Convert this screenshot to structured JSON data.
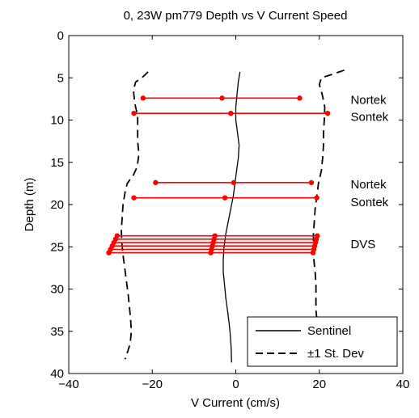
{
  "chart_data": {
    "type": "line",
    "title": "0, 23W pm779 Depth vs V Current Speed",
    "xlabel": "V Current (cm/s)",
    "ylabel": "Depth (m)",
    "xlim": [
      -40,
      40
    ],
    "ylim": [
      0,
      40
    ],
    "y_reversed": true,
    "grid": false,
    "xticks": [
      -40,
      -20,
      0,
      20,
      40
    ],
    "yticks": [
      0,
      5,
      10,
      15,
      20,
      25,
      30,
      35,
      40
    ],
    "legend": {
      "placement": "bottom-right",
      "entries": [
        {
          "label": "Sentinel",
          "style": "solid"
        },
        {
          "label": "±1 St. Dev",
          "style": "dashed"
        }
      ]
    },
    "series": [
      {
        "name": "Sentinel",
        "style": "solid",
        "color": "#000000",
        "points": [
          [
            1,
            4.3
          ],
          [
            0.6,
            5.5
          ],
          [
            0.3,
            7
          ],
          [
            0,
            8.5
          ],
          [
            0,
            10
          ],
          [
            0.4,
            11.5
          ],
          [
            0.8,
            13
          ],
          [
            0.6,
            14.5
          ],
          [
            0.2,
            16
          ],
          [
            -0.2,
            17.5
          ],
          [
            -0.6,
            19
          ],
          [
            -1.2,
            20.5
          ],
          [
            -1.8,
            22
          ],
          [
            -2.4,
            23.5
          ],
          [
            -2.8,
            25
          ],
          [
            -3,
            26.5
          ],
          [
            -3,
            28
          ],
          [
            -2.7,
            29.5
          ],
          [
            -2.4,
            31
          ],
          [
            -2,
            32.5
          ],
          [
            -1.6,
            34
          ],
          [
            -1.3,
            35.5
          ],
          [
            -1.1,
            37
          ],
          [
            -1,
            38.7
          ]
        ]
      },
      {
        "name": "minus-1-sd",
        "style": "dashed",
        "color": "#000000",
        "points": [
          [
            -21,
            4.3
          ],
          [
            -22.5,
            5
          ],
          [
            -24,
            5.5
          ],
          [
            -24.5,
            6.5
          ],
          [
            -24.2,
            8
          ],
          [
            -23.5,
            9.5
          ],
          [
            -23.5,
            11
          ],
          [
            -23.5,
            12.5
          ],
          [
            -23.2,
            14
          ],
          [
            -23.6,
            15.5
          ],
          [
            -24.5,
            16.5
          ],
          [
            -26,
            17.5
          ],
          [
            -26.5,
            18.5
          ],
          [
            -27,
            20
          ],
          [
            -27.2,
            21.5
          ],
          [
            -27.4,
            23
          ],
          [
            -27.3,
            24.5
          ],
          [
            -27,
            26
          ],
          [
            -26.6,
            27.5
          ],
          [
            -26.2,
            29
          ],
          [
            -25.8,
            30.5
          ],
          [
            -25.5,
            32
          ],
          [
            -25.2,
            33.5
          ],
          [
            -25,
            35
          ],
          [
            -25.3,
            36.5
          ],
          [
            -26.5,
            38.3
          ]
        ]
      },
      {
        "name": "plus-1-sd",
        "style": "dashed",
        "color": "#000000",
        "points": [
          [
            26,
            4.1
          ],
          [
            23,
            4.6
          ],
          [
            20.5,
            5
          ],
          [
            20,
            5.8
          ],
          [
            20.7,
            7
          ],
          [
            21.3,
            8.5
          ],
          [
            21.2,
            10
          ],
          [
            21,
            11.5
          ],
          [
            21,
            13
          ],
          [
            20.8,
            14.5
          ],
          [
            20.5,
            16
          ],
          [
            19.8,
            17.5
          ],
          [
            19.4,
            19
          ],
          [
            19,
            20.5
          ],
          [
            18.8,
            22
          ],
          [
            18.6,
            23.5
          ],
          [
            18.6,
            25
          ],
          [
            18.7,
            26.5
          ],
          [
            19,
            28
          ],
          [
            19.2,
            29.5
          ],
          [
            19.2,
            31
          ],
          [
            19.2,
            32.5
          ],
          [
            19.5,
            34
          ],
          [
            19.2,
            35.5
          ]
        ]
      }
    ],
    "error_bars": [
      {
        "depth": 7.4,
        "mean": -3.3,
        "low": -22.2,
        "high": 15.3
      },
      {
        "depth": 9.2,
        "mean": -1.2,
        "low": -24.4,
        "high": 22.0
      },
      {
        "depth": 17.4,
        "mean": -0.5,
        "low": -19.2,
        "high": 18.1
      },
      {
        "depth": 19.2,
        "mean": -2.6,
        "low": -24.4,
        "high": 19.4
      },
      {
        "depth": 23.7,
        "mean": -5.0,
        "low": -28.4,
        "high": 19.5
      },
      {
        "depth": 24.1,
        "mean": -5.2,
        "low": -28.8,
        "high": 19.3
      },
      {
        "depth": 24.5,
        "mean": -5.4,
        "low": -29.2,
        "high": 19.1
      },
      {
        "depth": 24.9,
        "mean": -5.6,
        "low": -29.6,
        "high": 18.9
      },
      {
        "depth": 25.3,
        "mean": -5.8,
        "low": -30.0,
        "high": 18.7
      },
      {
        "depth": 25.7,
        "mean": -6.0,
        "low": -30.4,
        "high": 18.5
      }
    ],
    "error_bar_color": "#ff0000",
    "annotations": [
      {
        "text": "Nortek",
        "x": 27.5,
        "y": 7.6
      },
      {
        "text": "Sontek",
        "x": 27.5,
        "y": 9.6
      },
      {
        "text": "Nortek",
        "x": 27.5,
        "y": 17.6
      },
      {
        "text": "Sontek",
        "x": 27.5,
        "y": 19.7
      },
      {
        "text": "DVS",
        "x": 27.5,
        "y": 24.7
      }
    ]
  }
}
